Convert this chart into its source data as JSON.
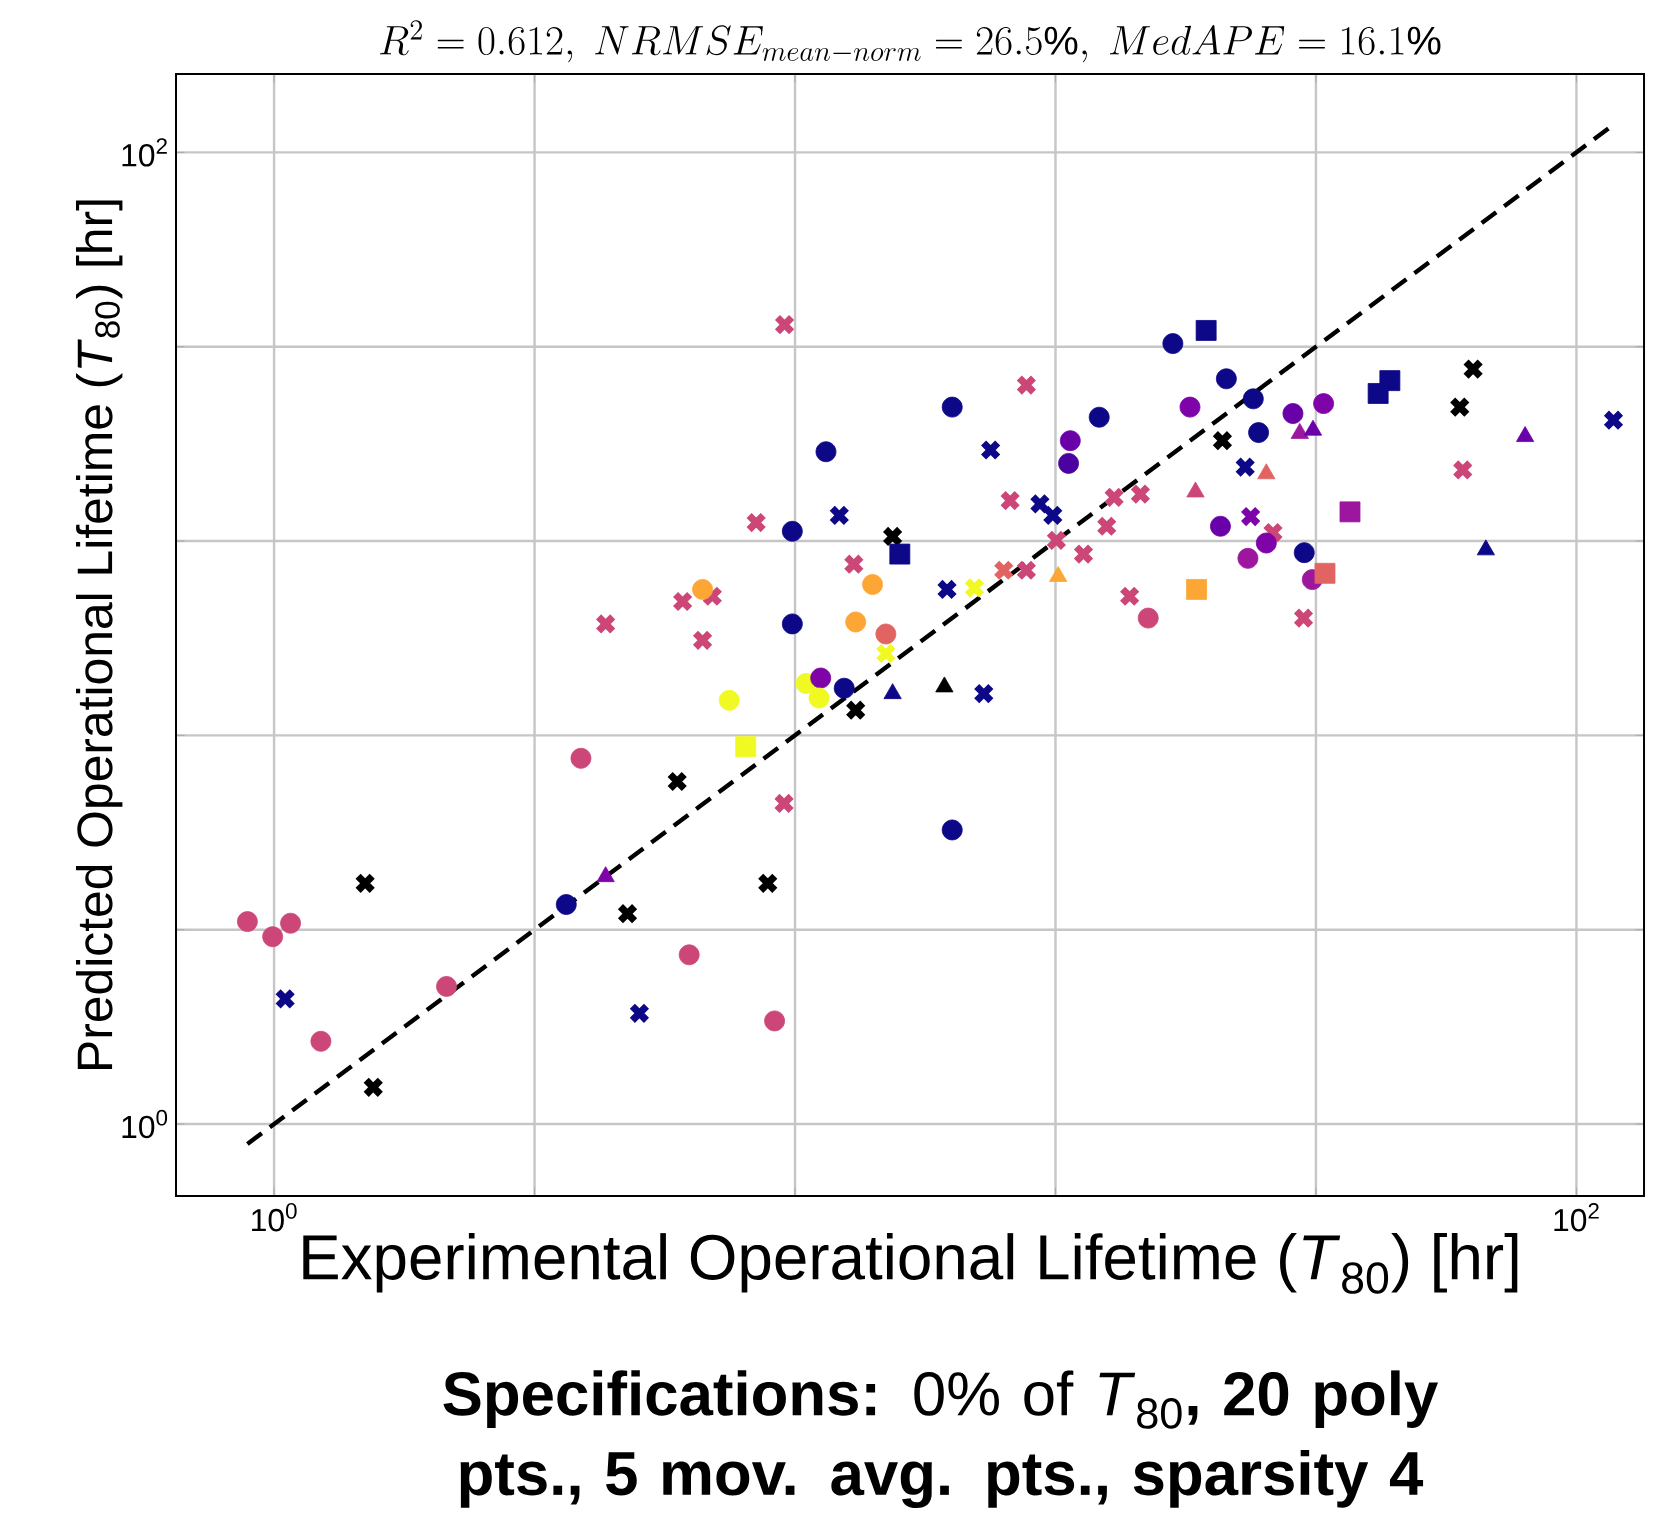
{
  "chart_data": {
    "type": "scatter",
    "title": "R^{2} = 0.612,\\ NRMSE_{mean - norm} = 26.5\\%,\\ MedAPE = 16.1\\%",
    "xlabel": "Experimental Operational Lifetime (*T*$_{80}$) [hr]",
    "ylabel": "Predicted Operational Lifetime (*T*$_{80}$) [hr]",
    "annotations": [
      "**Specifications:** 0% of *T*$_{80}$**, 20 poly pts., 5 mov. avg. pts., sparsity 4**"
    ],
    "log": "xy",
    "grid": true,
    "xlim": [
      0.707,
      127
    ],
    "ylim": [
      0.711,
      145
    ],
    "xticks": [
      {
        "value": 1,
        "label": "10$^{0}$"
      },
      {
        "value": 2.512,
        "label": null
      },
      {
        "value": 6.31,
        "label": null
      },
      {
        "value": 15.85,
        "label": null
      },
      {
        "value": 39.81,
        "label": null
      },
      {
        "value": 100,
        "label": "10$^{2}$"
      }
    ],
    "yticks": [
      {
        "value": 1,
        "label": "10$^{0}$"
      },
      {
        "value": 2.512,
        "label": null
      },
      {
        "value": 6.31,
        "label": null
      },
      {
        "value": 15.85,
        "label": null
      },
      {
        "value": 39.81,
        "label": null
      },
      {
        "value": 100,
        "label": "10$^{2}$"
      }
    ],
    "series": [
      {
        "marker": "cross",
        "x": [
          6.08,
          5.5,
          7.38,
          7.77,
          4.24,
          4.71,
          3.23,
          4.55,
          7.82,
          8.7,
          8.91,
          14.3,
          12.6,
          13.5,
          15.0,
          15.7,
          19.5,
          21.4,
          19.0,
          15.9,
          17.5,
          14.3,
          13.2,
          20.6,
          28.6,
          31.0,
          31.6,
          34.2,
          38.1,
          69.4,
          66.2,
          66.9,
          114,
          10.8,
          11.9,
          12.3,
          4.16,
          6.07,
          1.38,
          3.49,
          5.73,
          1.04,
          1.42,
          3.64
        ],
        "values": [
          44.2,
          17.3,
          17.9,
          14.2,
          11.9,
          12.2,
          10.7,
          9.9,
          7.11,
          9.3,
          16.2,
          33.2,
          24.4,
          19.2,
          18.9,
          17.9,
          19.5,
          19.8,
          17.0,
          15.9,
          14.9,
          13.8,
          13.8,
          12.2,
          25.5,
          22.5,
          17.8,
          16.5,
          11.0,
          35.8,
          29.9,
          22.2,
          28.1,
          12.6,
          12.7,
          7.69,
          5.07,
          4.57,
          3.13,
          2.71,
          3.13,
          1.81,
          1.19,
          1.69
        ],
        "colors": [
          "#cc4778",
          "#cc4778",
          "#0d0887",
          "#cc4778",
          "#cc4778",
          "#cc4778",
          "#cc4778",
          "#cc4778",
          "#000000",
          "#f0f921",
          "#000000",
          "#cc4778",
          "#0d0887",
          "#cc4778",
          "#0d0887",
          "#0d0887",
          "#cc4778",
          "#cc4778",
          "#cc4778",
          "#cc4778",
          "#cc4778",
          "#cc4778",
          "#e16462",
          "#cc4778",
          "#000000",
          "#0d0887",
          "#7e03a8",
          "#cc4778",
          "#cc4778",
          "#000000",
          "#000000",
          "#cc4778",
          "#0d0887",
          "#0d0887",
          "#f0f921",
          "#0d0887",
          "#000000",
          "#cc4778",
          "#000000",
          "#000000",
          "#000000",
          "#0d0887",
          "#000000",
          "#0d0887"
        ]
      },
      {
        "marker": "circle",
        "x": [
          7.04,
          6.25,
          8.3,
          4.55,
          6.25,
          7.82,
          8.7,
          5.0,
          6.56,
          6.91,
          6.87,
          7.51,
          2.96,
          24.0,
          11.0,
          18.5,
          16.7,
          16.6,
          22.0,
          29.0,
          25.5,
          31.9,
          32.5,
          36.7,
          40.9,
          28.4,
          33.4,
          31.3,
          38.2,
          39.3,
          11.0,
          2.81,
          0.91,
          0.995,
          1.06,
          1.18,
          1.84,
          4.34,
          5.87
        ],
        "values": [
          24.2,
          16.6,
          12.9,
          12.6,
          10.7,
          10.8,
          10.2,
          7.45,
          8.07,
          8.28,
          7.53,
          7.89,
          5.66,
          40.4,
          29.9,
          28.5,
          25.5,
          22.9,
          11.0,
          34.2,
          29.9,
          31.1,
          26.5,
          29.0,
          30.4,
          17.0,
          15.7,
          14.6,
          15.0,
          13.2,
          4.03,
          2.83,
          2.61,
          2.43,
          2.59,
          1.48,
          1.92,
          2.23,
          1.63
        ],
        "colors": [
          "#0d0887",
          "#0d0887",
          "#fca636",
          "#fca636",
          "#0d0887",
          "#fca636",
          "#e16462",
          "#f0f921",
          "#f0f921",
          "#7e03a8",
          "#f0f921",
          "#0d0887",
          "#cc4778",
          "#0d0887",
          "#0d0887",
          "#0d0887",
          "#6a00a8",
          "#4c02a1",
          "#cc4778",
          "#0d0887",
          "#7e03a8",
          "#0d0887",
          "#0d0887",
          "#6a00a8",
          "#7e03a8",
          "#6a00a8",
          "#7e03a8",
          "#9c179e",
          "#0d0887",
          "#9c179e",
          "#0d0887",
          "#0d0887",
          "#cc4778",
          "#cc4778",
          "#cc4778",
          "#cc4778",
          "#cc4778",
          "#cc4778",
          "#cc4778"
        ]
      },
      {
        "marker": "square",
        "x": [
          5.3,
          27.0,
          26.1,
          41.1,
          44.9,
          51.7,
          49.6,
          9.14
        ],
        "values": [
          5.98,
          43.0,
          12.6,
          13.6,
          18.2,
          33.9,
          31.9,
          14.9
        ],
        "colors": [
          "#f0f921",
          "#0d0887",
          "#fca636",
          "#e16462",
          "#9c179e",
          "#0d0887",
          "#0d0887",
          "#0d0887"
        ]
      },
      {
        "marker": "triangle",
        "x": [
          8.91,
          16.0,
          26.0,
          33.4,
          37.6,
          39.4,
          83.4,
          72.6,
          10.7,
          3.23
        ],
        "values": [
          7.69,
          13.4,
          20.0,
          21.8,
          26.4,
          26.8,
          26.0,
          15.2,
          7.94,
          3.23
        ],
        "colors": [
          "#0d0887",
          "#fca636",
          "#cc4778",
          "#e16462",
          "#9c179e",
          "#6a00a8",
          "#6a00a8",
          "#0d0887",
          "#000000",
          "#7e03a8"
        ]
      },
      {
        "type": "line",
        "line_style": "dashed",
        "color": "#000000",
        "x": [
          0.91,
          112
        ],
        "values": [
          0.91,
          112
        ]
      }
    ]
  }
}
